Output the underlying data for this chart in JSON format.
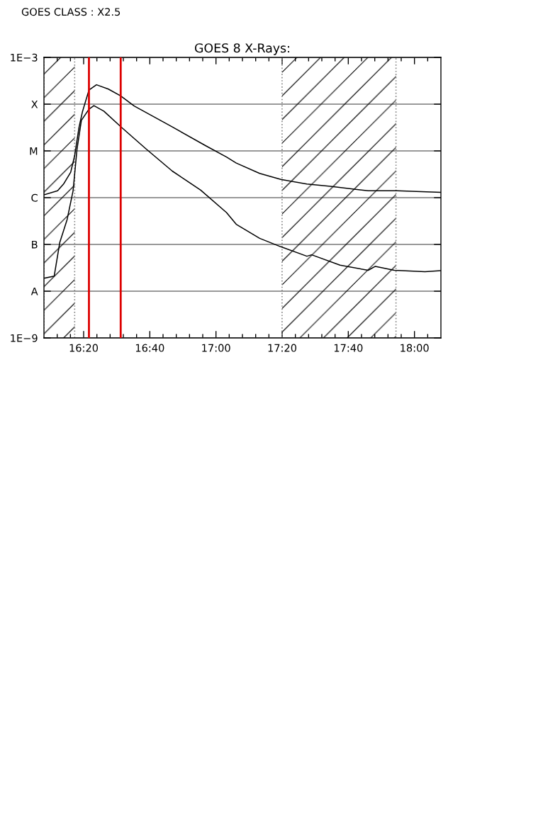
{
  "chart_data": {
    "type": "line",
    "title": "GOES 8 X-Rays:",
    "annotations": [
      "GOES CLASS : X2.5"
    ],
    "log": true,
    "grid": "y",
    "xlim": [
      16.1333,
      18.1333
    ],
    "xticks": [
      {
        "value": 16.2,
        "label": null
      },
      {
        "value": 16.2667,
        "label": null
      },
      {
        "value": 16.3333,
        "label": "16:20"
      },
      {
        "value": 16.4,
        "label": null
      },
      {
        "value": 16.4667,
        "label": null
      },
      {
        "value": 16.5333,
        "label": null
      },
      {
        "value": 16.6,
        "label": null
      },
      {
        "value": 16.6667,
        "label": "16:40"
      },
      {
        "value": 16.7333,
        "label": null
      },
      {
        "value": 16.8,
        "label": null
      },
      {
        "value": 16.8667,
        "label": null
      },
      {
        "value": 16.9333,
        "label": null
      },
      {
        "value": 17.0,
        "label": "17:00"
      },
      {
        "value": 17.0667,
        "label": null
      },
      {
        "value": 17.1333,
        "label": null
      },
      {
        "value": 17.2,
        "label": null
      },
      {
        "value": 17.2667,
        "label": null
      },
      {
        "value": 17.3333,
        "label": "17:20"
      },
      {
        "value": 17.4,
        "label": null
      },
      {
        "value": 17.4667,
        "label": null
      },
      {
        "value": 17.5333,
        "label": null
      },
      {
        "value": 17.6,
        "label": null
      },
      {
        "value": 17.6667,
        "label": "17:40"
      },
      {
        "value": 17.7333,
        "label": null
      },
      {
        "value": 17.8,
        "label": null
      },
      {
        "value": 17.8667,
        "label": null
      },
      {
        "value": 17.9333,
        "label": null
      },
      {
        "value": 18.0,
        "label": "18:00"
      },
      {
        "value": 18.0667,
        "label": null
      }
    ],
    "ylim": [
      1e-09,
      0.001
    ],
    "yticks": [
      {
        "value": 1e-09,
        "label": "1E−9"
      },
      {
        "value": 1e-08,
        "label": "A"
      },
      {
        "value": 1e-07,
        "label": "B"
      },
      {
        "value": 1e-06,
        "label": "C"
      },
      {
        "value": 1e-05,
        "label": "M"
      },
      {
        "value": 0.0001,
        "label": "X"
      },
      {
        "value": 0.001,
        "label": "1E−3"
      }
    ],
    "series": [
      {
        "color": "#000000",
        "x": [
          16.1333,
          16.202,
          16.232,
          16.268,
          16.288,
          16.31,
          16.327,
          16.36,
          16.398,
          16.458,
          16.52,
          16.588,
          16.767,
          16.947,
          17.053,
          17.102,
          17.22,
          17.327,
          17.458,
          17.577,
          17.767,
          17.912,
          18.133
        ],
        "values": [
          1.15e-06,
          1.4e-06,
          1.95e-06,
          3.5e-06,
          7.9e-06,
          3.2e-05,
          6.8e-05,
          0.0002,
          0.00026,
          0.00021,
          0.00015,
          9.1e-05,
          3.5e-05,
          1.3e-05,
          7.4e-06,
          5.5e-06,
          3.3e-06,
          2.45e-06,
          1.95e-06,
          1.75e-06,
          1.4e-06,
          1.4e-06,
          1.3e-06
        ]
      },
      {
        "color": "#000000",
        "x": [
          16.137,
          16.185,
          16.213,
          16.25,
          16.28,
          16.3,
          16.322,
          16.36,
          16.385,
          16.435,
          16.52,
          16.648,
          16.78,
          16.923,
          17.053,
          17.102,
          17.22,
          17.327,
          17.458,
          17.482,
          17.625,
          17.767,
          17.803,
          17.898,
          18.053,
          18.133
        ],
        "values": [
          1.9e-08,
          2.1e-08,
          1.1e-07,
          3.4e-07,
          1.4e-06,
          1.1e-05,
          4.5e-05,
          7.8e-05,
          9.3e-05,
          7.1e-05,
          3.3e-05,
          1.1e-05,
          3.7e-06,
          1.45e-06,
          4.8e-07,
          2.7e-07,
          1.35e-07,
          8.9e-08,
          5.6e-08,
          6e-08,
          3.6e-08,
          2.8e-08,
          3.4e-08,
          2.8e-08,
          2.6e-08,
          2.75e-08
        ]
      }
    ],
    "ref_lines": [
      {
        "axis": "x",
        "value": 16.36,
        "color": "#dd0000"
      },
      {
        "axis": "x",
        "value": 16.52,
        "color": "#dd0000"
      }
    ],
    "bands": [
      {
        "axis": "x",
        "from": 16.1333,
        "to": 16.288
      },
      {
        "axis": "x",
        "from": 17.333,
        "to": 17.907
      }
    ]
  }
}
